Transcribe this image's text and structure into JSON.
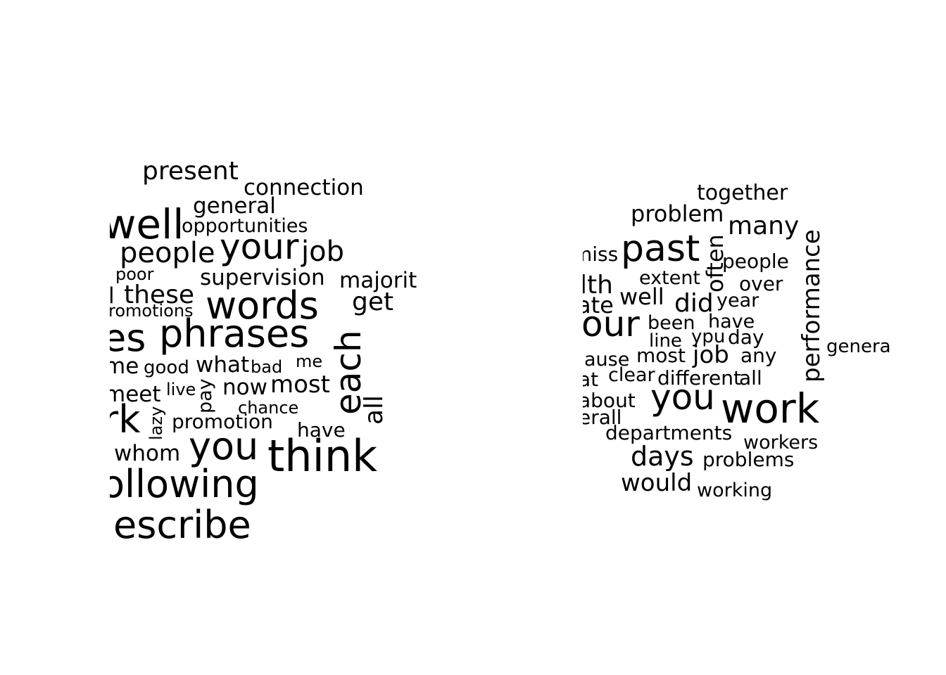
{
  "colors": {
    "background": "#ffffff",
    "text": "#000000"
  },
  "left_cloud": {
    "words": [
      {
        "text": "present"
      },
      {
        "text": "connection"
      },
      {
        "text": "general"
      },
      {
        "text": "well"
      },
      {
        "text": "opportunities"
      },
      {
        "text": "your"
      },
      {
        "text": "people"
      },
      {
        "text": "job"
      },
      {
        "text": "poor"
      },
      {
        "text": "supervision"
      },
      {
        "text": "majorit"
      },
      {
        "text": "l"
      },
      {
        "text": "these"
      },
      {
        "text": "words"
      },
      {
        "text": "get"
      },
      {
        "text": "romotions"
      },
      {
        "text": "es"
      },
      {
        "text": "phrases"
      },
      {
        "text": "each"
      },
      {
        "text": "me"
      },
      {
        "text": "good"
      },
      {
        "text": "what"
      },
      {
        "text": "bad"
      },
      {
        "text": "me"
      },
      {
        "text": "meet"
      },
      {
        "text": "live"
      },
      {
        "text": "pay"
      },
      {
        "text": "now"
      },
      {
        "text": "most"
      },
      {
        "text": "all"
      },
      {
        "text": "rk"
      },
      {
        "text": "lazy"
      },
      {
        "text": "chance"
      },
      {
        "text": "promotion"
      },
      {
        "text": "have"
      },
      {
        "text": "whom"
      },
      {
        "text": "you"
      },
      {
        "text": "think"
      },
      {
        "text": "ollowing"
      },
      {
        "text": "lescribe"
      }
    ]
  },
  "right_cloud": {
    "words": [
      {
        "text": "together"
      },
      {
        "text": "problem"
      },
      {
        "text": "many"
      },
      {
        "text": "miss"
      },
      {
        "text": "past"
      },
      {
        "text": "often"
      },
      {
        "text": "people"
      },
      {
        "text": "performance"
      },
      {
        "text": "extent"
      },
      {
        "text": "lth"
      },
      {
        "text": "over"
      },
      {
        "text": "well"
      },
      {
        "text": "did"
      },
      {
        "text": "year"
      },
      {
        "text": "ate"
      },
      {
        "text": "our"
      },
      {
        "text": "been"
      },
      {
        "text": "have"
      },
      {
        "text": "line"
      },
      {
        "text": "ypu"
      },
      {
        "text": "day"
      },
      {
        "text": "genera"
      },
      {
        "text": "ause"
      },
      {
        "text": "most"
      },
      {
        "text": "job"
      },
      {
        "text": "any"
      },
      {
        "text": "at"
      },
      {
        "text": "clear"
      },
      {
        "text": "different"
      },
      {
        "text": "all"
      },
      {
        "text": "you"
      },
      {
        "text": "about"
      },
      {
        "text": "work"
      },
      {
        "text": "erall"
      },
      {
        "text": "departments"
      },
      {
        "text": "workers"
      },
      {
        "text": "days"
      },
      {
        "text": "problems"
      },
      {
        "text": "would"
      },
      {
        "text": "working"
      }
    ]
  }
}
